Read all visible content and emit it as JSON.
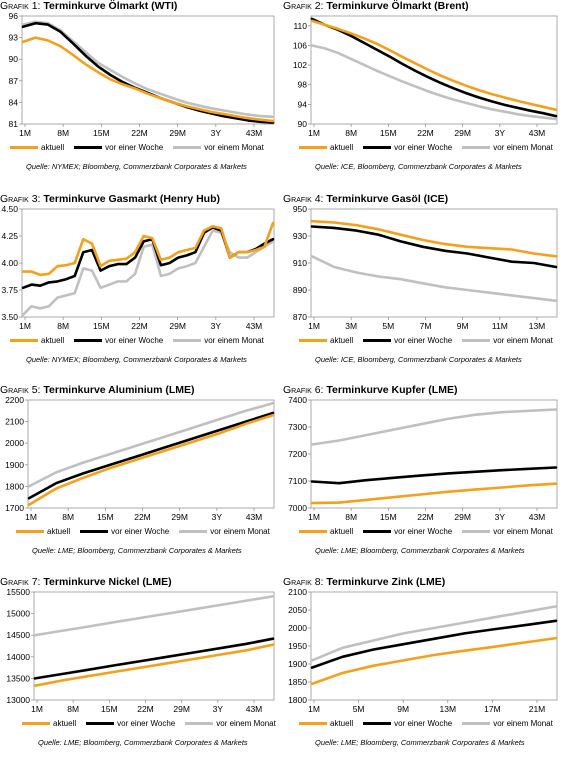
{
  "colors": {
    "aktuell": "#f5a01a",
    "woche": "#000000",
    "monat": "#c0c0c0"
  },
  "legend_labels": [
    "aktuell",
    "vor einer Woche",
    "vor einem Monat"
  ],
  "chart_data": [
    {
      "type": "line",
      "label": "Grafik 1:",
      "title": "Terminkurve Ölmarkt (WTI)",
      "source": "Quelle: NYMEX; Bloomberg, Commerzbank Corporates & Markets",
      "xticks": [
        "1M",
        "8M",
        "15M",
        "22M",
        "29M",
        "3Y",
        "43M"
      ],
      "yticks": [
        81,
        84,
        87,
        90,
        93,
        96
      ],
      "ylim": [
        81,
        96
      ],
      "series": [
        {
          "name": "vor einem Monat",
          "values": [
            94.8,
            95.2,
            95.0,
            94.0,
            92.5,
            91.0,
            89.5,
            88.5,
            87.5,
            86.6,
            85.8,
            85.2,
            84.6,
            84.0,
            83.6,
            83.2,
            82.9,
            82.6,
            82.3,
            82.1,
            82.0
          ]
        },
        {
          "name": "vor einer Woche",
          "values": [
            94.5,
            95.0,
            94.8,
            93.8,
            92.2,
            90.5,
            89.0,
            87.8,
            86.8,
            86.0,
            85.3,
            84.6,
            84.0,
            83.4,
            82.9,
            82.5,
            82.1,
            81.8,
            81.5,
            81.3,
            81.2
          ]
        },
        {
          "name": "aktuell",
          "values": [
            92.4,
            93.0,
            92.6,
            91.8,
            90.6,
            89.3,
            88.2,
            87.2,
            86.5,
            85.9,
            85.2,
            84.6,
            84.0,
            83.5,
            83.1,
            82.7,
            82.4,
            82.1,
            81.8,
            81.6,
            81.4
          ]
        }
      ]
    },
    {
      "type": "line",
      "label": "Grafik 2:",
      "title": "Terminkurve Ölmarkt (Brent)",
      "source": "Quelle: ICE, Bloomberg, Commerzbank Corporates & Markets",
      "xticks": [
        "1M",
        "8M",
        "15M",
        "22M",
        "29M",
        "3Y",
        "43M"
      ],
      "yticks": [
        90,
        94,
        98,
        102,
        106,
        110
      ],
      "ylim": [
        90,
        112
      ],
      "series": [
        {
          "name": "vor einem Monat",
          "values": [
            106.0,
            105.4,
            104.5,
            103.3,
            102.1,
            100.9,
            99.8,
            98.7,
            97.7,
            96.7,
            95.8,
            95.0,
            94.3,
            93.6,
            93.0,
            92.5,
            92.0,
            91.6,
            91.3,
            91.0
          ]
        },
        {
          "name": "vor einer Woche",
          "values": [
            111.4,
            110.2,
            109.2,
            108.0,
            106.6,
            105.2,
            103.8,
            102.3,
            100.9,
            99.6,
            98.4,
            97.3,
            96.3,
            95.4,
            94.6,
            93.9,
            93.3,
            92.7,
            92.2,
            91.6
          ]
        },
        {
          "name": "aktuell",
          "values": [
            111.0,
            110.2,
            109.4,
            108.5,
            107.5,
            106.4,
            105.1,
            103.7,
            102.4,
            101.1,
            99.9,
            98.8,
            97.8,
            96.9,
            96.1,
            95.4,
            94.7,
            94.1,
            93.5,
            92.9
          ]
        }
      ]
    },
    {
      "type": "line",
      "label": "Grafik 3:",
      "title": "Terminkurve Gasmarkt (Henry Hub)",
      "source": "Quelle: NYMEX; Bloomberg, Commerzbank Corporates & Markets",
      "xticks": [
        "1M",
        "8M",
        "15M",
        "22M",
        "29M",
        "3Y",
        "43M"
      ],
      "yticks": [
        3.5,
        3.75,
        4.0,
        4.25,
        4.5
      ],
      "ytick_labels": [
        "3.50",
        "3.75",
        "4.00",
        "4.25",
        "4.50"
      ],
      "ylim": [
        3.5,
        4.5
      ],
      "series": [
        {
          "name": "vor einem Monat",
          "values": [
            3.52,
            3.6,
            3.58,
            3.6,
            3.68,
            3.7,
            3.72,
            3.95,
            3.93,
            3.77,
            3.8,
            3.83,
            3.83,
            3.9,
            4.15,
            4.17,
            3.88,
            3.9,
            3.95,
            3.97,
            4.0,
            4.15,
            4.3,
            4.28,
            4.1,
            4.05,
            4.05,
            4.1,
            4.15,
            4.2
          ]
        },
        {
          "name": "vor einer Woche",
          "values": [
            3.77,
            3.8,
            3.79,
            3.82,
            3.83,
            3.85,
            3.88,
            4.1,
            4.12,
            3.93,
            3.97,
            3.99,
            3.99,
            4.05,
            4.2,
            4.22,
            3.98,
            4.0,
            4.05,
            4.07,
            4.1,
            4.28,
            4.33,
            4.3,
            4.05,
            4.1,
            4.1,
            4.13,
            4.18,
            4.22
          ]
        },
        {
          "name": "aktuell",
          "values": [
            3.92,
            3.92,
            3.89,
            3.9,
            3.97,
            3.98,
            4.0,
            4.22,
            4.18,
            3.97,
            4.02,
            4.03,
            4.04,
            4.1,
            4.25,
            4.23,
            4.03,
            4.05,
            4.1,
            4.12,
            4.14,
            4.3,
            4.34,
            4.32,
            4.05,
            4.1,
            4.1,
            4.12,
            4.15,
            4.37
          ]
        }
      ]
    },
    {
      "type": "line",
      "label": "Grafik 4:",
      "title": "Terminkurve Gasöl (ICE)",
      "source": "Quelle: ICE, Bloomberg, Commerzbank Corporates & Markets",
      "xticks": [
        "1M",
        "3M",
        "5M",
        "7M",
        "9M",
        "11M",
        "13M"
      ],
      "yticks": [
        870,
        890,
        910,
        930,
        950
      ],
      "ylim": [
        870,
        950
      ],
      "series": [
        {
          "name": "vor einem Monat",
          "values": [
            915,
            907,
            903,
            900,
            898,
            895,
            892,
            890,
            888,
            886,
            884,
            882
          ]
        },
        {
          "name": "vor einer Woche",
          "values": [
            937,
            936,
            934,
            931,
            926,
            922,
            919,
            917,
            914,
            911,
            910,
            907
          ]
        },
        {
          "name": "aktuell",
          "values": [
            941,
            940,
            938,
            935,
            931,
            927,
            924,
            922,
            921,
            920,
            917,
            915
          ]
        }
      ]
    },
    {
      "type": "line",
      "label": "Grafik 5:",
      "title": "Terminkurve Aluminium (LME)",
      "source": "Quelle: LME; Bloomberg, Commerzbank Corporates & Markets",
      "xticks": [
        "1M",
        "8M",
        "15M",
        "22M",
        "29M",
        "3Y",
        "43M"
      ],
      "yticks": [
        1700,
        1800,
        1900,
        2000,
        2100,
        2200
      ],
      "ylim": [
        1700,
        2200
      ],
      "series": [
        {
          "name": "vor einem Monat",
          "values": [
            1800,
            1865,
            1910,
            1950,
            1990,
            2030,
            2070,
            2110,
            2150,
            2185
          ]
        },
        {
          "name": "vor einer Woche",
          "values": [
            1745,
            1815,
            1860,
            1900,
            1940,
            1980,
            2020,
            2060,
            2100,
            2140
          ]
        },
        {
          "name": "aktuell",
          "values": [
            1715,
            1790,
            1840,
            1885,
            1925,
            1965,
            2005,
            2045,
            2090,
            2130
          ]
        }
      ]
    },
    {
      "type": "line",
      "label": "Grafik 6:",
      "title": "Terminkurve Kupfer (LME)",
      "source": "Quelle: LME; Bloomberg, Commerzbank Corporates & Markets",
      "xticks": [
        "1M",
        "8M",
        "15M",
        "22M",
        "29M",
        "3Y",
        "43M"
      ],
      "yticks": [
        7000,
        7100,
        7200,
        7300,
        7400
      ],
      "ylim": [
        7000,
        7400
      ],
      "series": [
        {
          "name": "vor einem Monat",
          "values": [
            7235,
            7250,
            7270,
            7290,
            7310,
            7330,
            7345,
            7355,
            7360,
            7365
          ]
        },
        {
          "name": "vor einer Woche",
          "values": [
            7098,
            7092,
            7103,
            7112,
            7120,
            7128,
            7134,
            7140,
            7145,
            7150
          ]
        },
        {
          "name": "aktuell",
          "values": [
            7018,
            7020,
            7030,
            7040,
            7050,
            7060,
            7068,
            7076,
            7084,
            7090
          ]
        }
      ]
    },
    {
      "type": "line",
      "label": "Grafik 7:",
      "title": "Terminkurve Nickel (LME)",
      "source": "Quelle: LME; Bloomberg, Commerzbank Corporates & Markets",
      "xticks": [
        "1M",
        "8M",
        "15M",
        "22M",
        "29M",
        "3Y",
        "43M"
      ],
      "yticks": [
        13000,
        13500,
        14000,
        14500,
        15000,
        15500
      ],
      "ylim": [
        13000,
        15500
      ],
      "series": [
        {
          "name": "vor einem Monat",
          "values": [
            14500,
            14600,
            14700,
            14800,
            14900,
            15000,
            15100,
            15200,
            15300,
            15400
          ]
        },
        {
          "name": "vor einer Woche",
          "values": [
            13500,
            13600,
            13700,
            13800,
            13900,
            14000,
            14100,
            14200,
            14300,
            14420
          ]
        },
        {
          "name": "aktuell",
          "values": [
            13330,
            13450,
            13550,
            13650,
            13750,
            13850,
            13950,
            14050,
            14150,
            14280
          ]
        }
      ]
    },
    {
      "type": "line",
      "label": "Grafik 8:",
      "title": "Terminkurve Zink (LME)",
      "source": "Quelle: LME; Bloomberg, Commerzbank Corporates & Markets",
      "xticks": [
        "1M",
        "5M",
        "9M",
        "13M",
        "17M",
        "21M"
      ],
      "yticks": [
        1800,
        1850,
        1900,
        1950,
        2000,
        2050,
        2100
      ],
      "ylim": [
        1800,
        2100
      ],
      "series": [
        {
          "name": "vor einem Monat",
          "values": [
            1910,
            1945,
            1965,
            1985,
            2000,
            2015,
            2030,
            2045,
            2060
          ]
        },
        {
          "name": "vor einer Woche",
          "values": [
            1890,
            1920,
            1940,
            1955,
            1970,
            1985,
            1997,
            2008,
            2020
          ]
        },
        {
          "name": "aktuell",
          "values": [
            1845,
            1875,
            1895,
            1910,
            1925,
            1937,
            1948,
            1960,
            1972
          ]
        }
      ]
    }
  ]
}
